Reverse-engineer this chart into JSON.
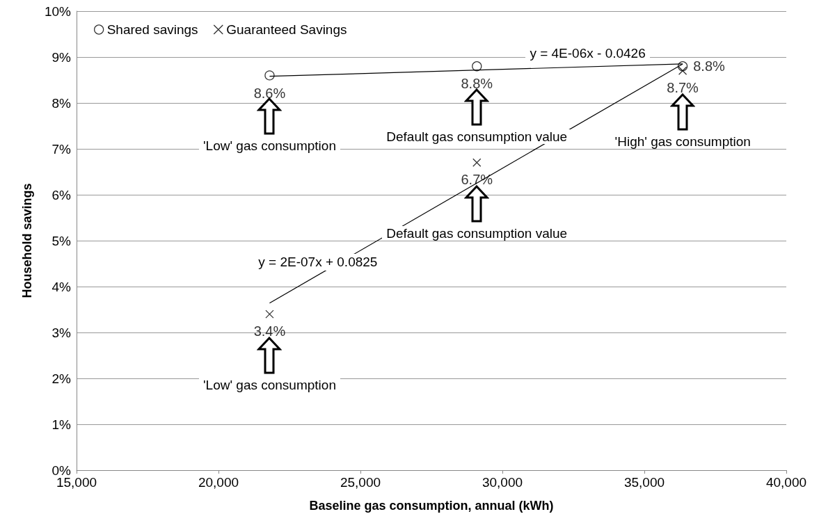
{
  "chart_data": {
    "type": "scatter",
    "xlabel": "Baseline gas consumption, annual (kWh)",
    "ylabel": "Household savings",
    "xlim": [
      15000,
      40000
    ],
    "xticks": [
      {
        "value": 15000,
        "label": "15,000"
      },
      {
        "value": 20000,
        "label": "20,000"
      },
      {
        "value": 25000,
        "label": "25,000"
      },
      {
        "value": 30000,
        "label": "30,000"
      },
      {
        "value": 35000,
        "label": "35,000"
      },
      {
        "value": 40000,
        "label": "40,000"
      }
    ],
    "ylim": [
      0,
      10
    ],
    "yticks": [
      {
        "value": 0,
        "label": "0%"
      },
      {
        "value": 1,
        "label": "1%"
      },
      {
        "value": 2,
        "label": "2%"
      },
      {
        "value": 3,
        "label": "3%"
      },
      {
        "value": 4,
        "label": "4%"
      },
      {
        "value": 5,
        "label": "5%"
      },
      {
        "value": 6,
        "label": "6%"
      },
      {
        "value": 7,
        "label": "7%"
      },
      {
        "value": 8,
        "label": "8%"
      },
      {
        "value": 9,
        "label": "9%"
      },
      {
        "value": 10,
        "label": "10%"
      }
    ],
    "grid": "y",
    "legend": "top left",
    "series": [
      {
        "name": "Shared savings",
        "marker": "circle",
        "color": "#000000",
        "x": [
          21800,
          29100,
          36350
        ],
        "values": [
          8.6,
          8.8,
          8.8
        ],
        "value_labels": [
          "8.6%",
          "8.8%",
          "8.8%"
        ]
      },
      {
        "name": "Guaranteed Savings",
        "marker": "cross",
        "color": "#000000",
        "x": [
          21800,
          29100,
          36350
        ],
        "values": [
          3.4,
          6.7,
          8.7
        ],
        "value_labels": [
          "3.4%",
          "6.7%",
          "8.7%"
        ]
      },
      {
        "type": "line",
        "marker": "none",
        "line_style": "solid",
        "color": "#000000",
        "x": [
          21800,
          36350
        ],
        "values": [
          8.58,
          8.85
        ]
      },
      {
        "type": "line",
        "marker": "none",
        "line_style": "solid",
        "color": "#000000",
        "x": [
          21800,
          36350
        ],
        "values": [
          3.64,
          8.85
        ]
      }
    ],
    "annotations": [
      "'Low' gas consumption",
      "Default gas consumption value",
      "'Low' gas consumption",
      "Default gas consumption value",
      "'High' gas consumption",
      {
        "text": "y = 4E-06x - 0.0426",
        "x": 33000,
        "y": 8.79
      },
      {
        "text": "y = 2E-07x + 0.0825",
        "x": 23500,
        "y": 4.25
      }
    ]
  }
}
